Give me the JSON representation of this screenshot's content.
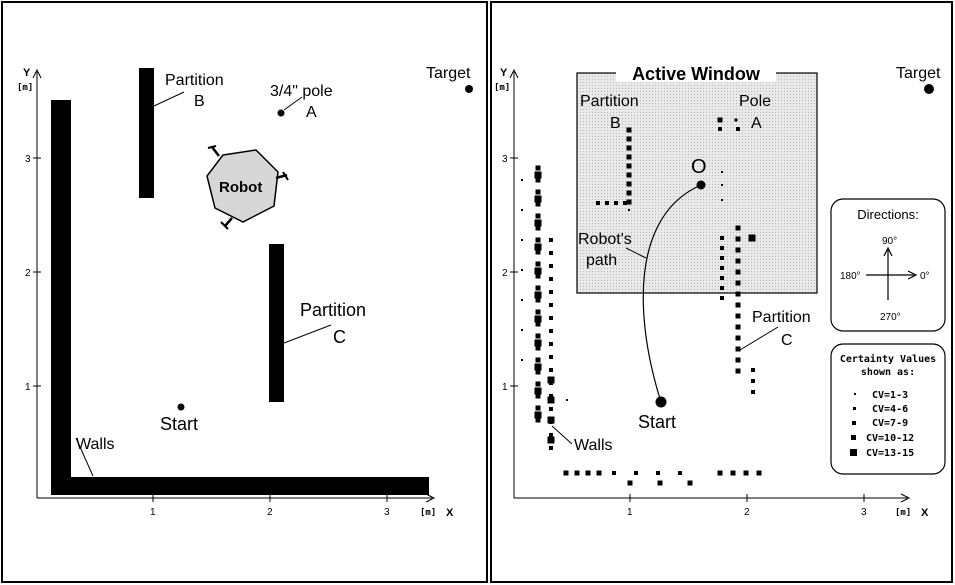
{
  "left_panel": {
    "axis": {
      "y_label": "Y",
      "y_unit": "[m]",
      "x_label": "X",
      "x_unit": "[m]",
      "x_ticks": [
        "1",
        "2",
        "3"
      ],
      "y_ticks": [
        "1",
        "2",
        "3"
      ]
    },
    "partition_b": {
      "line1": "Partition",
      "line2": "B"
    },
    "pole": {
      "line1": "3/4\" pole",
      "line2": "A"
    },
    "target": "Target",
    "robot": "Robot",
    "partition_c": {
      "line1": "Partition",
      "line2": "C"
    },
    "start": "Start",
    "walls": "Walls"
  },
  "right_panel": {
    "axis": {
      "y_label": "Y",
      "y_unit": "[m]",
      "x_label": "X",
      "x_unit": "[m]",
      "x_ticks": [
        "1",
        "2",
        "3"
      ],
      "y_ticks": [
        "1",
        "2",
        "3"
      ]
    },
    "active_window": "Active Window",
    "partition_b": {
      "line1": "Partition",
      "line2": "B"
    },
    "pole": {
      "line1": "Pole",
      "line2": "A"
    },
    "target": "Target",
    "robot_marker": "O",
    "robots_path": {
      "line1": "Robot's",
      "line2": "path"
    },
    "partition_c": {
      "line1": "Partition",
      "line2": "C"
    },
    "start": "Start",
    "walls": "Walls",
    "directions": {
      "title": "Directions:",
      "up": "90°",
      "left": "180°",
      "right": "0°",
      "down": "270°"
    },
    "certainty": {
      "title_line1": "Certainty Values",
      "title_line2": "shown as:",
      "entries": [
        "CV=1-3",
        "CV=4-6",
        "CV=7-9",
        "CV=10-12",
        "CV=13-15"
      ]
    }
  },
  "colors": {
    "ink": "#000000",
    "window_fill": "#e6e6e6",
    "background": "#ffffff"
  }
}
